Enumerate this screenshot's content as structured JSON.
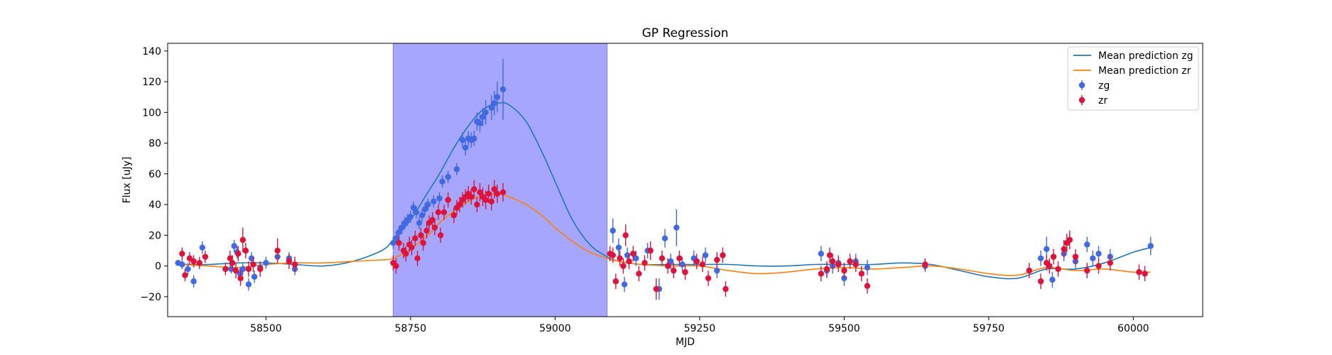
{
  "chart_data": {
    "type": "scatter",
    "title": "GP Regression",
    "xlabel": "MJD",
    "ylabel": "Flux [uJy]",
    "xlim": [
      58330,
      60120
    ],
    "ylim": [
      -33,
      145
    ],
    "xticks": [
      58500,
      58750,
      59000,
      59250,
      59500,
      59750,
      60000
    ],
    "yticks": [
      -20,
      0,
      20,
      40,
      60,
      80,
      100,
      120,
      140
    ],
    "shaded_region": {
      "x_start": 58720,
      "x_end": 59090,
      "color": "#a6a6ff"
    },
    "legend_position": "upper right",
    "legend": [
      {
        "label": "Mean prediction zg",
        "kind": "line",
        "color": "#1f77b4"
      },
      {
        "label": "Mean prediction zr",
        "kind": "line",
        "color": "#ff7f0e"
      },
      {
        "label": "zg",
        "kind": "errorbar",
        "color": "#4169e1"
      },
      {
        "label": "zr",
        "kind": "errorbar",
        "color": "#dc143c"
      }
    ],
    "series": [
      {
        "name": "Mean prediction zg",
        "kind": "line",
        "color": "#1f77b4",
        "x": [
          58350,
          58400,
          58450,
          58500,
          58550,
          58600,
          58650,
          58700,
          58720,
          58750,
          58780,
          58800,
          58830,
          58860,
          58880,
          58900,
          58920,
          58950,
          58980,
          59000,
          59030,
          59060,
          59090,
          59110,
          59150,
          59200,
          59250,
          59300,
          59350,
          59400,
          59450,
          59500,
          59550,
          59600,
          59650,
          59700,
          59750,
          59800,
          59850,
          59900,
          59950,
          60000,
          60030
        ],
        "y": [
          1,
          1,
          2,
          2,
          1,
          0,
          3,
          10,
          17,
          30,
          48,
          60,
          80,
          96,
          103,
          106,
          105,
          94,
          72,
          55,
          30,
          14,
          6,
          3,
          1,
          1,
          1,
          1,
          0,
          0,
          1,
          1,
          1,
          2,
          1,
          -3,
          -7,
          -8,
          -2,
          -2,
          2,
          9,
          12
        ]
      },
      {
        "name": "Mean prediction zr",
        "kind": "line",
        "color": "#ff7f0e",
        "x": [
          58350,
          58400,
          58450,
          58500,
          58550,
          58600,
          58650,
          58700,
          58720,
          58750,
          58780,
          58800,
          58830,
          58860,
          58880,
          58900,
          58920,
          58950,
          58980,
          59000,
          59030,
          59060,
          59090,
          59110,
          59150,
          59200,
          59250,
          59300,
          59350,
          59400,
          59450,
          59500,
          59550,
          59600,
          59650,
          59700,
          59750,
          59800,
          59850,
          59900,
          59950,
          60000,
          60030
        ],
        "y": [
          1,
          0,
          -1,
          1,
          2,
          2,
          3,
          4,
          5,
          11,
          20,
          28,
          37,
          44,
          46,
          47,
          45,
          40,
          32,
          25,
          16,
          9,
          5,
          3,
          1,
          0,
          0,
          -3,
          -5,
          -4,
          -2,
          -1,
          -2,
          -1,
          0,
          -2,
          -5,
          -6,
          -1,
          -3,
          -2,
          -4,
          -4
        ]
      },
      {
        "name": "zg",
        "kind": "errorbar",
        "color": "#4169e1",
        "x": [
          58348,
          58355,
          58365,
          58375,
          58390,
          58440,
          58445,
          58450,
          58455,
          58460,
          58470,
          58475,
          58480,
          58490,
          58500,
          58520,
          58540,
          58550,
          58720,
          58725,
          58730,
          58735,
          58740,
          58745,
          58750,
          58755,
          58760,
          58765,
          58770,
          58775,
          58780,
          58790,
          58800,
          58805,
          58815,
          58830,
          58840,
          58845,
          58850,
          58855,
          58860,
          58865,
          58870,
          58875,
          58880,
          58890,
          58895,
          58900,
          58910,
          59100,
          59110,
          59120,
          59125,
          59140,
          59160,
          59180,
          59190,
          59200,
          59210,
          59220,
          59240,
          59260,
          59280,
          59460,
          59470,
          59480,
          59490,
          59500,
          59520,
          59540,
          59640,
          59820,
          59840,
          59850,
          59860,
          59880,
          59900,
          59920,
          59930,
          59940,
          59960,
          60030
        ],
        "y": [
          2,
          1,
          -2,
          -10,
          12,
          -2,
          13,
          9,
          -5,
          -2,
          -12,
          5,
          -7,
          -1,
          2,
          6,
          5,
          -2,
          15,
          18,
          22,
          25,
          28,
          30,
          32,
          38,
          35,
          28,
          33,
          37,
          40,
          42,
          44,
          55,
          58,
          63,
          82,
          77,
          83,
          82,
          83,
          94,
          93,
          97,
          100,
          103,
          106,
          110,
          115,
          23,
          12,
          -12,
          7,
          5,
          10,
          -15,
          18,
          3,
          25,
          1,
          5,
          7,
          -3,
          8,
          -3,
          0,
          2,
          -8,
          3,
          -1,
          0,
          -3,
          5,
          11,
          -9,
          8,
          3,
          14,
          5,
          8,
          6,
          13
        ],
        "err": [
          2,
          3,
          4,
          4,
          4,
          3,
          4,
          4,
          4,
          4,
          4,
          4,
          4,
          4,
          4,
          4,
          4,
          4,
          4,
          4,
          4,
          4,
          4,
          4,
          4,
          4,
          4,
          4,
          4,
          4,
          4,
          4,
          4,
          4,
          4,
          4,
          5,
          5,
          5,
          5,
          5,
          6,
          6,
          6,
          8,
          8,
          8,
          10,
          20,
          8,
          6,
          5,
          5,
          5,
          5,
          7,
          6,
          5,
          12,
          5,
          5,
          5,
          5,
          5,
          5,
          5,
          5,
          5,
          5,
          5,
          4,
          5,
          5,
          8,
          5,
          5,
          5,
          5,
          5,
          5,
          5,
          6
        ]
      },
      {
        "name": "zr",
        "kind": "errorbar",
        "color": "#dc143c",
        "x": [
          58355,
          58360,
          58368,
          58375,
          58385,
          58395,
          58430,
          58438,
          58442,
          58448,
          58452,
          58456,
          58460,
          58465,
          58470,
          58478,
          58490,
          58520,
          58540,
          58550,
          58720,
          58725,
          58730,
          58738,
          58742,
          58748,
          58752,
          58758,
          58762,
          58768,
          58772,
          58778,
          58782,
          58788,
          58792,
          58798,
          58802,
          58808,
          58815,
          58825,
          58830,
          58835,
          58840,
          58845,
          58850,
          58855,
          58860,
          58865,
          58870,
          58875,
          58880,
          58885,
          58890,
          58895,
          58900,
          58910,
          59095,
          59100,
          59105,
          59112,
          59118,
          59122,
          59128,
          59135,
          59145,
          59155,
          59165,
          59175,
          59185,
          59195,
          59205,
          59215,
          59225,
          59245,
          59255,
          59265,
          59280,
          59290,
          59295,
          59460,
          59470,
          59475,
          59480,
          59490,
          59500,
          59510,
          59520,
          59530,
          59540,
          59640,
          59820,
          59840,
          59850,
          59855,
          59862,
          59870,
          59880,
          59885,
          59890,
          59900,
          59920,
          59940,
          59960,
          60010,
          60020
        ],
        "y": [
          8,
          -6,
          5,
          3,
          2,
          6,
          -2,
          5,
          2,
          -3,
          8,
          -8,
          17,
          10,
          -2,
          1,
          -2,
          10,
          3,
          1,
          2,
          0,
          15,
          10,
          8,
          14,
          12,
          18,
          5,
          20,
          15,
          23,
          28,
          30,
          25,
          35,
          20,
          35,
          43,
          33,
          38,
          40,
          43,
          45,
          47,
          45,
          50,
          40,
          48,
          45,
          43,
          47,
          42,
          50,
          47,
          48,
          8,
          7,
          -10,
          5,
          0,
          20,
          3,
          8,
          -5,
          2,
          10,
          -15,
          5,
          0,
          -3,
          5,
          -4,
          3,
          1,
          -8,
          4,
          7,
          -15,
          -5,
          -2,
          7,
          3,
          1,
          -3,
          3,
          1,
          -5,
          -13,
          1,
          -3,
          -10,
          2,
          0,
          6,
          -2,
          11,
          15,
          17,
          6,
          -3,
          0,
          2,
          -4,
          -5
        ],
        "err": [
          4,
          4,
          4,
          4,
          4,
          4,
          4,
          5,
          5,
          5,
          5,
          5,
          8,
          5,
          5,
          5,
          5,
          8,
          5,
          5,
          5,
          5,
          5,
          5,
          5,
          5,
          5,
          5,
          5,
          5,
          5,
          5,
          5,
          5,
          5,
          5,
          5,
          5,
          5,
          5,
          5,
          5,
          5,
          5,
          5,
          5,
          6,
          5,
          6,
          6,
          6,
          6,
          6,
          6,
          6,
          6,
          5,
          5,
          5,
          5,
          5,
          7,
          5,
          5,
          5,
          5,
          6,
          7,
          5,
          5,
          5,
          5,
          5,
          5,
          5,
          5,
          5,
          5,
          5,
          5,
          5,
          5,
          5,
          5,
          5,
          5,
          5,
          5,
          5,
          4,
          5,
          5,
          5,
          5,
          5,
          5,
          6,
          6,
          6,
          5,
          5,
          5,
          5,
          5,
          5
        ]
      }
    ]
  }
}
